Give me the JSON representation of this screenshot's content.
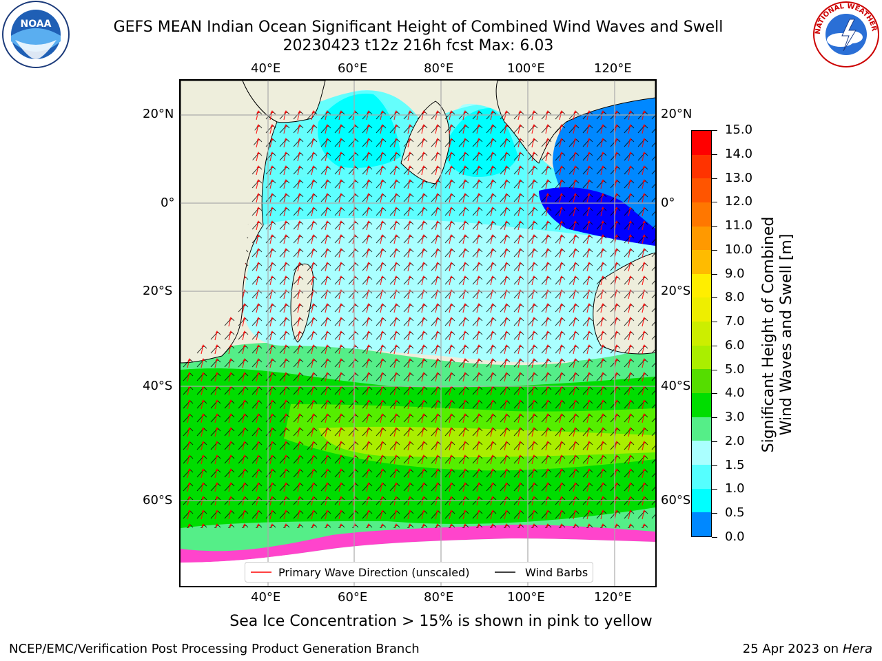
{
  "title": {
    "line1": "GEFS MEAN Indian Ocean Significant Height of Combined Wind Waves and Swell",
    "line2": "20230423 t12z 216h fcst   Max: 6.03"
  },
  "logos": {
    "left": "NOAA",
    "right": "NATIONAL WEATHER SERVICE"
  },
  "map": {
    "lon_top_labels": [
      "40°E",
      "60°E",
      "80°E",
      "100°E",
      "120°E"
    ],
    "lon_bottom_labels": [
      "40°E",
      "60°E",
      "80°E",
      "100°E",
      "120°E"
    ],
    "lat_left_labels": [
      "20°N",
      "0°",
      "20°S",
      "40°S",
      "60°S"
    ],
    "lat_right_labels": [
      "20°N",
      "0°",
      "20°S",
      "40°S",
      "60°S"
    ],
    "land_color": "#eeeedc",
    "legend": {
      "wave_label": "Primary Wave Direction (unscaled)",
      "barb_label": "Wind Barbs",
      "wave_color": "#ff0000",
      "barb_color": "#000000"
    }
  },
  "colorbar": {
    "title_line1": "Significant Height of Combined",
    "title_line2": "Wind Waves and Swell [m]",
    "ticks": [
      "15.0",
      "14.0",
      "13.0",
      "12.0",
      "11.0",
      "10.0",
      "9.0",
      "8.0",
      "7.0",
      "6.0",
      "5.0",
      "4.0",
      "3.0",
      "2.0",
      "1.5",
      "1.0",
      "0.5",
      "0.0"
    ],
    "colors": [
      "#ff0000",
      "#ff3300",
      "#ff5500",
      "#ff7700",
      "#ff9900",
      "#ffbb00",
      "#ffee00",
      "#eeee00",
      "#ccee00",
      "#aaee00",
      "#55dd00",
      "#00dd00",
      "#55ee88",
      "#aaffff",
      "#55ffff",
      "#00ffff",
      "#0088ff",
      "#0000ff"
    ]
  },
  "caption": "Sea Ice Concentration > 15% is shown in pink to yellow",
  "footer": {
    "left": "NCEP/EMC/Verification Post Processing Product Generation Branch",
    "right_prefix": "25 Apr 2023 on ",
    "right_host": "Hera"
  }
}
